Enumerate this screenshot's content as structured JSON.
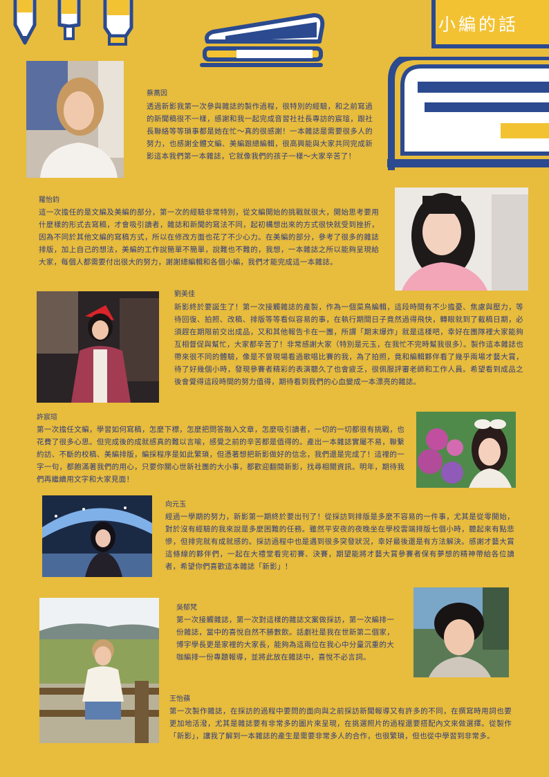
{
  "header": {
    "title": "小編的話"
  },
  "editors": [
    {
      "name": "蔡蕎因",
      "text": "透過新影我第一次參與雜誌的製作過程，很特別的經驗，和之前寫過的新聞稿很不一樣，感謝和我一起完成音習社社長專訪的宸瑄，跟社長聯絡等等瑣事都是她在忙～真的很感謝！一本雜誌是需要很多人的努力，也感謝全體文編、美編跟總編輯，很高興能與大家共同完成新影這本我們第一本雜誌，它就像我們的孩子一樣～大家辛苦了！"
    },
    {
      "name": "羅怡鈞",
      "text": "這一次擔任的是文編及美編的部分，第一次的經驗非常特別，從文編開始的挑戰就很大，開始思考要用什麼樣的形式去寫稿，才會吸引讀者，雜誌和新聞的寫法不同，起初構想出來的方式很快就受到挫折，因為不同於其他文編的寫稿方式，所以在修改方面也花了不少心力。在美編的部分，參考了很多的雜誌排版，加上自己的想法，美編的工作說簡單不簡單，說難也不難的，我想，一本雜誌之所以能夠呈現給大家，每個人都需要付出很大的努力，謝謝總編輯和各個小編，我們才能完成這一本雜誌。"
    },
    {
      "name": "劉美佳",
      "text": "新影終於要誕生了！第一次接觸雜誌的產製，作為一個菜鳥編輯，這段時間有不少擔憂、焦慮與壓力，等待回復、拍照、改稿、排版等等看似容易的事，在執行期間日子竟然過得飛快，轉眼就到了截稿日期，必須趕在期限前交出成品，又和其他報告卡在一團，所謂「期末爆炸」就是這樣吧，幸好在團隊裡大家能夠互相督促與幫忙，大家都辛苦了！非常感謝大家（特別是元玉，在我忙不完時幫我很多）。製作這本雜誌也帶來很不同的體驗，像是不曾現場看過歌唱比賽的我，為了拍照，竟和編輯夥伴看了幾乎兩場才藝大賞，待了好幾個小時，發現參賽者精彩的表演聽久了也會疲乏，很佩服評審老師和工作人員。希望看到成品之後會覺得這段時間的努力值得，期待看到我們的心血變成一本漂亮的雜誌。"
    },
    {
      "name": "許宸瑄",
      "text": "第一次擔任文編，學習如何寫稿，怎麼下標，怎麼把問答融入文章，怎麼吸引讀者，一切的一切都很有挑戰，也花費了很多心思。但完成後的成就感真的難以言喻，感覺之前的辛苦都是值得的。產出一本雜誌實屬不易，聯繫約訪、不斷的校稿、美編排版，編採程序是如此繁瑣，但憑著想把新影做好的信念，我們還是完成了！這裡的一字一句，都飽滿著我們的用心，只要你關心世新社團的大小事，都歡迎翻閱新影，找尋相關資訊。明年，期待我們再繼續用文字和大家見面！"
    },
    {
      "name": "向元玉",
      "text": "經過一學期的努力，新影第一期終於要出刊了！從採訪到排版是多麼不容易的一件事，尤其是從零開始，對於沒有經驗的我來說是多麼困難的任務。雖然平安夜的夜晚坐在學校雲端排版七個小時，聽起來有點悲慘，但排完就有成就感的。採訪過程中也是遇到很多突發狀況，幸好最後還是有方法解決。感謝才藝大賞這條線的夥伴們，一起在大禮堂看完初賽、決賽，期望能將才藝大賞參賽者保有夢想的精神帶給各位讀者，希望你們喜歡這本雜誌「新影」！"
    },
    {
      "name": "吳郁梵",
      "text": "第一次接觸雜誌，第一次對這樣的雜誌文案做採訪，第一次編排一份雜誌，當中的喜悅自然不勝數飲。話劇社是我在世新第二個家，博宇學長更是家裡的大家長，能夠為這兩位在我心中分量沉重的大咖編排一份專題報導，並將此放在雜誌中，喜悅不必言詞。"
    },
    {
      "name": "王怡蘋",
      "text": "第一次製作雜誌，在採訪的過程中要問的面向與之前採訪新聞報導又有許多的不同，在撰寫時用詞也要更加地活潑，尤其是雜誌要有非常多的圖片來呈現，在挑選照片的過程還要搭配內文來做選擇。從製作「新影」，讓我了解到一本雜誌的產生是需要非常多人的合作，也很繁瑣，但也從中學習到非常多。"
    }
  ],
  "colors": {
    "background": "#e8bc3c",
    "navy": "#2b4a8f",
    "text": "#2e3c7e",
    "white": "#ffffff"
  }
}
